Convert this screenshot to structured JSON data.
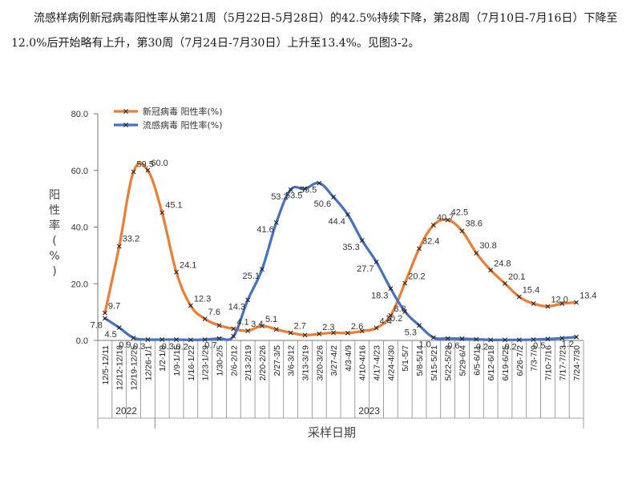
{
  "paragraph": "流感样病例新冠病毒阳性率从第21周（5月22日-5月28日）的42.5%持续下降，第28周（7月10日-7月16日）下降至12.0%后开始略有上升，第30周（7月24日-7月30日）上升至13.4%。见图3-2。",
  "chart_data": {
    "type": "line",
    "ylabel": "阳性率(%)",
    "xlabel": "采样日期",
    "ylim": [
      0,
      80
    ],
    "yticks": [
      "0.0",
      "20.0",
      "40.0",
      "60.0",
      "80.0"
    ],
    "grid": false,
    "legend_position": "top-left",
    "categories": [
      "12/5-12/11",
      "12/12-12/18",
      "12/19-12/25",
      "12/26-1/1",
      "1/2-1/8",
      "1/9-1/15",
      "1/16-1/22",
      "1/23-1/29",
      "1/30-2/5",
      "2/6-2/12",
      "2/13-2/19",
      "2/20-2/26",
      "2/27-3/5",
      "3/6-3/12",
      "3/13-3/19",
      "3/20-3/26",
      "3/27-4/2",
      "4/3-4/9",
      "4/10-4/16",
      "4/17-4/23",
      "4/24-4/30",
      "5/1-5/7",
      "5/8-5/14",
      "5/15-5/21",
      "5/22-5/28",
      "5/29-6/4",
      "6/5-6/11",
      "6/12-6/18",
      "6/19-6/25",
      "6/26-7/2",
      "7/3-7/9",
      "7/10-7/16",
      "7/17-7/23",
      "7/24-7/30"
    ],
    "year_groups": [
      {
        "label": "2022",
        "count": 4
      },
      {
        "label": "2023",
        "count": 30
      }
    ],
    "series": [
      {
        "name": "新冠病毒 阳性率(%)",
        "color": "#ED7D31",
        "values": [
          9.7,
          33.2,
          59.5,
          60.0,
          45.1,
          24.1,
          12.3,
          7.6,
          5.3,
          4.1,
          3.4,
          5.1,
          3.9,
          2.7,
          1.9,
          2.3,
          2.7,
          2.6,
          3.3,
          4.4,
          8.8,
          20.2,
          32.4,
          40.7,
          42.5,
          38.6,
          30.8,
          24.8,
          20.1,
          15.4,
          13.0,
          12.0,
          13.0,
          13.4
        ],
        "labels": [
          "9.7",
          "33.2",
          "59.5",
          "60.0",
          "45.1",
          "24.1",
          "12.3",
          "7.6",
          "",
          "4.1",
          "3.4",
          "5.1",
          "",
          "2.7",
          "",
          "2.3",
          "",
          "2.6",
          "",
          "4.4",
          "8.8",
          "20.2",
          "32.4",
          "40.7",
          "42.5",
          "38.6",
          "30.8",
          "24.8",
          "20.1",
          "15.4",
          "",
          "12.0",
          "",
          "13.4"
        ]
      },
      {
        "name": "流感病毒 阳性率(%)",
        "color": "#4472C4",
        "values": [
          7.8,
          4.5,
          0.9,
          0.3,
          0.3,
          0.3,
          0.2,
          0.3,
          0.7,
          1.5,
          14.3,
          25.1,
          41.6,
          53.2,
          53.5,
          55.5,
          50.6,
          44.4,
          35.3,
          27.7,
          18.3,
          10.2,
          5.3,
          1.0,
          0.7,
          0.6,
          0.4,
          0.2,
          0.2,
          0.2,
          0.3,
          0.5,
          0.8,
          1.2
        ],
        "labels": [
          "7.8",
          "4.5",
          "0.9",
          "0.3",
          "",
          "0.3",
          "0.2",
          "",
          "0.7",
          "",
          "14.3",
          "25.1",
          "41.6",
          "53.2",
          "53.5",
          "55.5",
          "50.6",
          "44.4",
          "35.3",
          "27.7",
          "18.3",
          "10.2",
          "5.3",
          "1.0",
          "",
          "0.6",
          "",
          "0.2",
          "",
          "0.2",
          "",
          "0.5",
          "",
          "1.2"
        ]
      }
    ]
  }
}
